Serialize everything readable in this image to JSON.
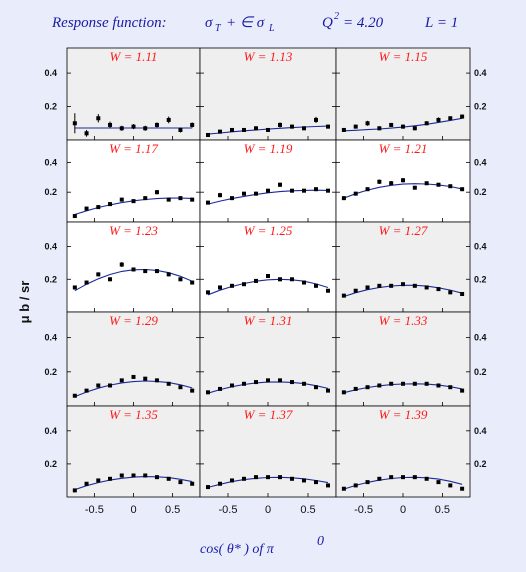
{
  "header": {
    "label": "Response function:",
    "formula_a": "σ",
    "formula_a_sub": "T",
    "formula_op": "+ ∈ σ",
    "formula_b_sub": "L",
    "q2_label": "Q",
    "q2_sup": "2",
    "q2_value": "= 4.20",
    "l_text": "L = 1"
  },
  "axes": {
    "ylabel": "μ b / sr",
    "xlabel_pre": "cos( θ* )  of  π",
    "xlabel_sup": "0",
    "y_ticks": [
      "0.2",
      "0.4"
    ],
    "x_ticks": [
      "-0.5",
      "0",
      "0.5"
    ]
  },
  "colors": {
    "background": "#e9ecfb",
    "panel_white": "#ffffff",
    "panel_gray": "#efefef",
    "curve": "#1c2b9c",
    "label_red": "#ff1a1a",
    "title_blue": "#1a1aa8"
  },
  "chart_data": {
    "type": "scatter",
    "layout": "grid 5 rows x 3 columns",
    "xlim": [
      -0.85,
      0.85
    ],
    "ylim": [
      0,
      0.55
    ],
    "panels": [
      {
        "label": "W = 1.11",
        "shade": "gray",
        "x": [
          -0.75,
          -0.6,
          -0.45,
          -0.3,
          -0.15,
          0.0,
          0.15,
          0.3,
          0.45,
          0.6,
          0.75
        ],
        "y": [
          0.1,
          0.04,
          0.13,
          0.09,
          0.07,
          0.08,
          0.07,
          0.09,
          0.12,
          0.06,
          0.09
        ],
        "err": [
          0.06,
          0.02,
          0.025,
          0.02,
          0.015,
          0.015,
          0.015,
          0.015,
          0.02,
          0.015,
          0.015
        ],
        "fit": [
          0.072,
          0.072,
          0.072,
          0.072,
          0.072,
          0.072,
          0.072,
          0.072,
          0.072,
          0.072,
          0.072
        ]
      },
      {
        "label": "W = 1.13",
        "shade": "gray",
        "x": [
          -0.75,
          -0.6,
          -0.45,
          -0.3,
          -0.15,
          0.0,
          0.15,
          0.3,
          0.45,
          0.6,
          0.75
        ],
        "y": [
          0.03,
          0.05,
          0.06,
          0.06,
          0.07,
          0.06,
          0.09,
          0.08,
          0.07,
          0.12,
          0.08
        ],
        "err": [
          0.012,
          0.012,
          0.012,
          0.012,
          0.012,
          0.012,
          0.015,
          0.012,
          0.012,
          0.018,
          0.012
        ],
        "fit": [
          0.035,
          0.042,
          0.049,
          0.055,
          0.06,
          0.065,
          0.07,
          0.074,
          0.078,
          0.081,
          0.083
        ]
      },
      {
        "label": "W = 1.15",
        "shade": "gray",
        "x": [
          -0.75,
          -0.6,
          -0.45,
          -0.3,
          -0.15,
          0.0,
          0.15,
          0.3,
          0.45,
          0.6,
          0.75
        ],
        "y": [
          0.06,
          0.08,
          0.1,
          0.07,
          0.09,
          0.08,
          0.07,
          0.1,
          0.12,
          0.13,
          0.14
        ],
        "err": [
          0.012,
          0.012,
          0.015,
          0.012,
          0.012,
          0.012,
          0.012,
          0.012,
          0.015,
          0.012,
          0.012
        ],
        "fit": [
          0.055,
          0.058,
          0.062,
          0.066,
          0.071,
          0.077,
          0.085,
          0.094,
          0.105,
          0.117,
          0.13
        ]
      },
      {
        "label": "W = 1.17",
        "shade": "white",
        "x": [
          -0.75,
          -0.6,
          -0.45,
          -0.3,
          -0.15,
          0.0,
          0.15,
          0.3,
          0.45,
          0.6,
          0.75
        ],
        "y": [
          0.04,
          0.09,
          0.1,
          0.12,
          0.15,
          0.14,
          0.16,
          0.2,
          0.15,
          0.16,
          0.15
        ],
        "err": [
          0.01,
          0.012,
          0.012,
          0.012,
          0.012,
          0.012,
          0.012,
          0.015,
          0.012,
          0.012,
          0.012
        ],
        "fit": [
          0.05,
          0.075,
          0.097,
          0.115,
          0.13,
          0.142,
          0.151,
          0.157,
          0.16,
          0.16,
          0.158
        ]
      },
      {
        "label": "W = 1.19",
        "shade": "white",
        "x": [
          -0.75,
          -0.6,
          -0.45,
          -0.3,
          -0.15,
          0.0,
          0.15,
          0.3,
          0.45,
          0.6,
          0.75
        ],
        "y": [
          0.13,
          0.18,
          0.16,
          0.19,
          0.19,
          0.21,
          0.25,
          0.21,
          0.21,
          0.22,
          0.21
        ],
        "err": [
          0.012,
          0.015,
          0.012,
          0.012,
          0.012,
          0.012,
          0.015,
          0.012,
          0.012,
          0.012,
          0.012
        ],
        "fit": [
          0.12,
          0.14,
          0.157,
          0.172,
          0.185,
          0.196,
          0.204,
          0.209,
          0.212,
          0.213,
          0.212
        ]
      },
      {
        "label": "W = 1.21",
        "shade": "white",
        "x": [
          -0.75,
          -0.6,
          -0.45,
          -0.3,
          -0.15,
          0.0,
          0.15,
          0.3,
          0.45,
          0.6,
          0.75
        ],
        "y": [
          0.16,
          0.19,
          0.22,
          0.27,
          0.26,
          0.28,
          0.23,
          0.26,
          0.25,
          0.24,
          0.22
        ],
        "err": [
          0.012,
          0.012,
          0.012,
          0.015,
          0.015,
          0.015,
          0.012,
          0.012,
          0.012,
          0.012,
          0.012
        ],
        "fit": [
          0.16,
          0.19,
          0.214,
          0.233,
          0.246,
          0.254,
          0.257,
          0.255,
          0.249,
          0.238,
          0.222
        ]
      },
      {
        "label": "W = 1.23",
        "shade": "white",
        "x": [
          -0.75,
          -0.6,
          -0.45,
          -0.3,
          -0.15,
          0.0,
          0.15,
          0.3,
          0.45,
          0.6,
          0.75
        ],
        "y": [
          0.15,
          0.18,
          0.23,
          0.2,
          0.29,
          0.26,
          0.25,
          0.25,
          0.23,
          0.2,
          0.18
        ],
        "err": [
          0.012,
          0.012,
          0.012,
          0.012,
          0.015,
          0.012,
          0.012,
          0.012,
          0.012,
          0.012,
          0.012
        ],
        "fit": [
          0.13,
          0.17,
          0.203,
          0.229,
          0.248,
          0.258,
          0.26,
          0.254,
          0.24,
          0.218,
          0.188
        ]
      },
      {
        "label": "W = 1.25",
        "shade": "white",
        "x": [
          -0.75,
          -0.6,
          -0.45,
          -0.3,
          -0.15,
          0.0,
          0.15,
          0.3,
          0.45,
          0.6,
          0.75
        ],
        "y": [
          0.12,
          0.15,
          0.16,
          0.17,
          0.19,
          0.22,
          0.2,
          0.2,
          0.18,
          0.16,
          0.13
        ],
        "err": [
          0.01,
          0.01,
          0.01,
          0.01,
          0.012,
          0.012,
          0.012,
          0.01,
          0.01,
          0.01,
          0.01
        ],
        "fit": [
          0.105,
          0.133,
          0.156,
          0.174,
          0.188,
          0.197,
          0.2,
          0.197,
          0.188,
          0.172,
          0.15
        ]
      },
      {
        "label": "W = 1.27",
        "shade": "gray",
        "x": [
          -0.75,
          -0.6,
          -0.45,
          -0.3,
          -0.15,
          0.0,
          0.15,
          0.3,
          0.45,
          0.6,
          0.75
        ],
        "y": [
          0.1,
          0.13,
          0.15,
          0.16,
          0.16,
          0.17,
          0.16,
          0.15,
          0.14,
          0.12,
          0.11
        ],
        "err": [
          0.008,
          0.008,
          0.008,
          0.008,
          0.008,
          0.008,
          0.008,
          0.008,
          0.008,
          0.008,
          0.008
        ],
        "fit": [
          0.095,
          0.118,
          0.136,
          0.15,
          0.159,
          0.163,
          0.163,
          0.158,
          0.148,
          0.134,
          0.115
        ]
      },
      {
        "label": "W = 1.29",
        "shade": "gray",
        "x": [
          -0.75,
          -0.6,
          -0.45,
          -0.3,
          -0.15,
          0.0,
          0.15,
          0.3,
          0.45,
          0.6,
          0.75
        ],
        "y": [
          0.06,
          0.09,
          0.12,
          0.12,
          0.15,
          0.17,
          0.16,
          0.15,
          0.13,
          0.11,
          0.09
        ],
        "err": [
          0.008,
          0.008,
          0.008,
          0.008,
          0.008,
          0.008,
          0.008,
          0.008,
          0.008,
          0.008,
          0.008
        ],
        "fit": [
          0.055,
          0.082,
          0.104,
          0.122,
          0.135,
          0.143,
          0.146,
          0.144,
          0.137,
          0.124,
          0.106
        ]
      },
      {
        "label": "W = 1.31",
        "shade": "gray",
        "x": [
          -0.75,
          -0.6,
          -0.45,
          -0.3,
          -0.15,
          0.0,
          0.15,
          0.3,
          0.45,
          0.6,
          0.75
        ],
        "y": [
          0.08,
          0.1,
          0.12,
          0.13,
          0.14,
          0.15,
          0.15,
          0.14,
          0.13,
          0.11,
          0.09
        ],
        "err": [
          0.007,
          0.007,
          0.007,
          0.007,
          0.007,
          0.007,
          0.007,
          0.007,
          0.007,
          0.007,
          0.007
        ],
        "fit": [
          0.075,
          0.096,
          0.113,
          0.126,
          0.135,
          0.14,
          0.141,
          0.138,
          0.131,
          0.119,
          0.103
        ]
      },
      {
        "label": "W = 1.33",
        "shade": "gray",
        "x": [
          -0.75,
          -0.6,
          -0.45,
          -0.3,
          -0.15,
          0.0,
          0.15,
          0.3,
          0.45,
          0.6,
          0.75
        ],
        "y": [
          0.08,
          0.1,
          0.11,
          0.12,
          0.13,
          0.13,
          0.13,
          0.13,
          0.12,
          0.11,
          0.09
        ],
        "err": [
          0.006,
          0.006,
          0.006,
          0.006,
          0.006,
          0.006,
          0.006,
          0.006,
          0.006,
          0.006,
          0.006
        ],
        "fit": [
          0.078,
          0.095,
          0.108,
          0.118,
          0.125,
          0.129,
          0.13,
          0.128,
          0.122,
          0.113,
          0.1
        ]
      },
      {
        "label": "W = 1.35",
        "shade": "gray",
        "x": [
          -0.75,
          -0.6,
          -0.45,
          -0.3,
          -0.15,
          0.0,
          0.15,
          0.3,
          0.45,
          0.6,
          0.75
        ],
        "y": [
          0.04,
          0.08,
          0.1,
          0.11,
          0.13,
          0.13,
          0.13,
          0.12,
          0.11,
          0.09,
          0.08
        ],
        "err": [
          0.006,
          0.006,
          0.006,
          0.006,
          0.006,
          0.006,
          0.006,
          0.006,
          0.006,
          0.006,
          0.006
        ],
        "fit": [
          0.045,
          0.068,
          0.087,
          0.102,
          0.113,
          0.12,
          0.123,
          0.122,
          0.117,
          0.107,
          0.093
        ]
      },
      {
        "label": "W = 1.37",
        "shade": "gray",
        "x": [
          -0.75,
          -0.6,
          -0.45,
          -0.3,
          -0.15,
          0.0,
          0.15,
          0.3,
          0.45,
          0.6,
          0.75
        ],
        "y": [
          0.06,
          0.08,
          0.1,
          0.11,
          0.12,
          0.12,
          0.12,
          0.11,
          0.1,
          0.09,
          0.07
        ],
        "err": [
          0.006,
          0.006,
          0.006,
          0.006,
          0.006,
          0.006,
          0.006,
          0.006,
          0.006,
          0.006,
          0.006
        ],
        "fit": [
          0.058,
          0.077,
          0.093,
          0.105,
          0.113,
          0.118,
          0.119,
          0.116,
          0.11,
          0.1,
          0.087
        ]
      },
      {
        "label": "W = 1.39",
        "shade": "gray",
        "x": [
          -0.75,
          -0.6,
          -0.45,
          -0.3,
          -0.15,
          0.0,
          0.15,
          0.3,
          0.45,
          0.6,
          0.75
        ],
        "y": [
          0.05,
          0.07,
          0.09,
          0.11,
          0.12,
          0.12,
          0.12,
          0.11,
          0.09,
          0.07,
          0.05
        ],
        "err": [
          0.006,
          0.006,
          0.006,
          0.006,
          0.006,
          0.006,
          0.006,
          0.006,
          0.006,
          0.006,
          0.006
        ],
        "fit": [
          0.048,
          0.07,
          0.088,
          0.102,
          0.112,
          0.118,
          0.119,
          0.116,
          0.108,
          0.095,
          0.077
        ]
      }
    ]
  }
}
